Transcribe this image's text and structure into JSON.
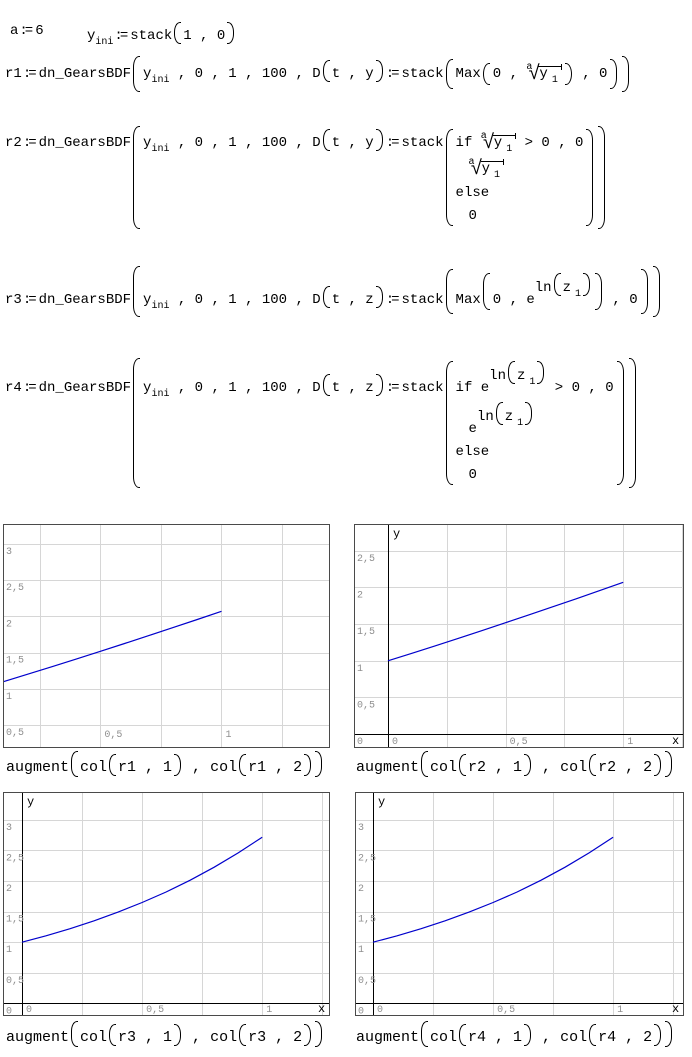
{
  "tokens": {
    "assign": ":=",
    "a_name": "a",
    "a_value": "6",
    "y": "y",
    "ini": "ini",
    "stack": "stack",
    "one_zero": "1 , 0",
    "r1": "r1",
    "r2": "r2",
    "r3": "r3",
    "r4": "r4",
    "fn": "dn_GearsBDF",
    "mid": " , 0 , 1 , 100 , D",
    "ty": "t , y",
    "tz": "t , z",
    "max": "Max",
    "zero_comma": "0 , ",
    "comma_zero": " , 0",
    "if_kw": "if ",
    "cond_tail": " > 0 , 0",
    "else_kw": "else",
    "zero": "0",
    "e": "e",
    "ln": "ln",
    "z": "z",
    "one": "1",
    "root_idx": "a",
    "radical": "√"
  },
  "colors": {
    "curve": "#0000cc",
    "grid": "#d6d6d6",
    "axis": "#000000",
    "tick_label": "#8f8f8f",
    "axis_label": "#000000",
    "plot_border": "#4a4a4a"
  },
  "chart_data": [
    {
      "type": "line",
      "caption": {
        "fn": "augment",
        "col": "col",
        "arg1": "r1 , 1",
        "sep": " , ",
        "arg2": "r1 , 2"
      },
      "xlim": [
        0.102,
        1.444
      ],
      "ylim": [
        0.2,
        3.26
      ],
      "x_grid_step": 0.25,
      "y_grid_step": 0.5,
      "axes": false,
      "axis_labels": {
        "x": "",
        "y": ""
      },
      "x_ticks": [
        {
          "v": 0.5,
          "label": "0,5"
        },
        {
          "v": 1,
          "label": "1"
        }
      ],
      "y_ticks": [
        {
          "v": 3,
          "label": "3"
        },
        {
          "v": 2.5,
          "label": "2,5"
        },
        {
          "v": 2,
          "label": "2"
        },
        {
          "v": 1.5,
          "label": "1,5"
        },
        {
          "v": 1,
          "label": "1"
        },
        {
          "v": 0.5,
          "label": "0,5"
        }
      ],
      "series": [
        {
          "name": "r1",
          "x": [
            0,
            0.1,
            0.2,
            0.3,
            0.4,
            0.5,
            0.6,
            0.7,
            0.8,
            0.9,
            1.0
          ],
          "y": [
            1.0,
            1.101,
            1.203,
            1.307,
            1.412,
            1.519,
            1.627,
            1.736,
            1.846,
            1.957,
            2.07
          ]
        }
      ]
    },
    {
      "type": "line",
      "caption": {
        "fn": "augment",
        "col": "col",
        "arg1": "r2 , 1",
        "sep": " , ",
        "arg2": "r2 , 2"
      },
      "xlim": [
        -0.14,
        1.254
      ],
      "ylim": [
        -0.176,
        2.852
      ],
      "x_grid_step": 0.25,
      "y_grid_step": 0.5,
      "axes": true,
      "axis_labels": {
        "x": "x",
        "y": "y"
      },
      "x_ticks": [
        {
          "v": 0,
          "label": "0"
        },
        {
          "v": 0.5,
          "label": "0,5"
        },
        {
          "v": 1,
          "label": "1"
        }
      ],
      "y_ticks": [
        {
          "v": 2.5,
          "label": "2,5"
        },
        {
          "v": 2,
          "label": "2"
        },
        {
          "v": 1.5,
          "label": "1,5"
        },
        {
          "v": 1,
          "label": "1"
        },
        {
          "v": 0.5,
          "label": "0,5"
        },
        {
          "v": 0,
          "label": "0"
        }
      ],
      "series": [
        {
          "name": "r2",
          "x": [
            0,
            0.1,
            0.2,
            0.3,
            0.4,
            0.5,
            0.6,
            0.7,
            0.8,
            0.9,
            1.0
          ],
          "y": [
            1.0,
            1.101,
            1.203,
            1.307,
            1.412,
            1.519,
            1.627,
            1.736,
            1.846,
            1.957,
            2.07
          ]
        }
      ]
    },
    {
      "type": "line",
      "caption": {
        "fn": "augment",
        "col": "col",
        "arg1": "r3 , 1",
        "sep": " , ",
        "arg2": "r3 , 2"
      },
      "xlim": [
        -0.075,
        1.278
      ],
      "ylim": [
        -0.19,
        3.44
      ],
      "x_grid_step": 0.25,
      "y_grid_step": 0.5,
      "axes": true,
      "axis_labels": {
        "x": "x",
        "y": "y"
      },
      "x_ticks": [
        {
          "v": 0,
          "label": "0"
        },
        {
          "v": 0.5,
          "label": "0,5"
        },
        {
          "v": 1,
          "label": "1"
        }
      ],
      "y_ticks": [
        {
          "v": 3,
          "label": "3"
        },
        {
          "v": 2.5,
          "label": "2,5"
        },
        {
          "v": 2,
          "label": "2"
        },
        {
          "v": 1.5,
          "label": "1,5"
        },
        {
          "v": 1,
          "label": "1"
        },
        {
          "v": 0.5,
          "label": "0,5"
        },
        {
          "v": 0,
          "label": "0"
        }
      ],
      "series": [
        {
          "name": "r3",
          "x": [
            0,
            0.1,
            0.2,
            0.3,
            0.4,
            0.5,
            0.6,
            0.7,
            0.8,
            0.9,
            1.0
          ],
          "y": [
            1.0,
            1.105,
            1.221,
            1.35,
            1.492,
            1.649,
            1.822,
            2.014,
            2.226,
            2.46,
            2.718
          ]
        }
      ]
    },
    {
      "type": "line",
      "caption": {
        "fn": "augment",
        "col": "col",
        "arg1": "r4 , 1",
        "sep": " , ",
        "arg2": "r4 , 2"
      },
      "xlim": [
        -0.071,
        1.291
      ],
      "ylim": [
        -0.19,
        3.44
      ],
      "x_grid_step": 0.25,
      "y_grid_step": 0.5,
      "axes": true,
      "axis_labels": {
        "x": "x",
        "y": "y"
      },
      "x_ticks": [
        {
          "v": 0,
          "label": "0"
        },
        {
          "v": 0.5,
          "label": "0,5"
        },
        {
          "v": 1,
          "label": "1"
        }
      ],
      "y_ticks": [
        {
          "v": 3,
          "label": "3"
        },
        {
          "v": 2.5,
          "label": "2,5"
        },
        {
          "v": 2,
          "label": "2"
        },
        {
          "v": 1.5,
          "label": "1,5"
        },
        {
          "v": 1,
          "label": "1"
        },
        {
          "v": 0.5,
          "label": "0,5"
        },
        {
          "v": 0,
          "label": "0"
        }
      ],
      "series": [
        {
          "name": "r4",
          "x": [
            0,
            0.1,
            0.2,
            0.3,
            0.4,
            0.5,
            0.6,
            0.7,
            0.8,
            0.9,
            1.0
          ],
          "y": [
            1.0,
            1.105,
            1.221,
            1.35,
            1.492,
            1.649,
            1.822,
            2.014,
            2.226,
            2.46,
            2.718
          ]
        }
      ]
    }
  ]
}
